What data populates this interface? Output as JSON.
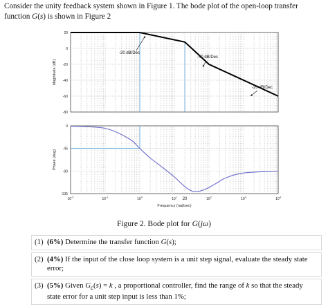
{
  "intro": {
    "line1": "Consider the unity feedback system shown in Figure 1. The bode plot of the open-loop transfer",
    "line2": "function G(s) is shown in Figure 2"
  },
  "caption": "Figure 2. Bode plot for G(jω)",
  "questions": [
    {
      "num": "(1)",
      "pct": "(6%)",
      "text": " Determine the transfer function G(s);"
    },
    {
      "num": "(2)",
      "pct": "(4%)",
      "text": " If the input of the close loop system is a unit step signal, evaluate the steady state error;"
    },
    {
      "num": "(3)",
      "pct": "(5%)",
      "text": " Given Gc(s) = k , a proportional controller, find the range of k so that the steady state error for a unit step input is less than 1%;"
    }
  ],
  "chart_data": [
    {
      "type": "line",
      "ylabel": "Magnitude (dB)",
      "x_scale": "log",
      "xlim": [
        0.01,
        10000
      ],
      "ylim": [
        -80,
        20
      ],
      "yticks": [
        "20",
        "0",
        "-20",
        "-40",
        "-60",
        "-80"
      ],
      "grid": true,
      "series": [
        {
          "x": [
            0.01,
            1,
            20,
            100,
            10000
          ],
          "y": [
            20,
            20,
            8,
            -20,
            -60
          ]
        }
      ],
      "annotations": [
        "-20 dB/Dec",
        "-40 dB/Dec",
        "-20 dB/Dec"
      ],
      "color": "#000000"
    },
    {
      "type": "line",
      "ylabel": "Phase (deg)",
      "xlabel": "Frequency (rad/sec)",
      "x_scale": "log",
      "xlim": [
        0.01,
        10000
      ],
      "ylim": [
        -135,
        0
      ],
      "yticks": [
        "0",
        "-45",
        "-90",
        "-135"
      ],
      "xticks": [
        "10-2",
        "10-1",
        "100",
        "101",
        "20",
        "102",
        "103",
        "104"
      ],
      "xtick_marks": {
        "exp": [
          "-2",
          "-1",
          "0",
          "1",
          "2",
          "3",
          "4"
        ],
        "extra": "20"
      },
      "grid": true,
      "series": [
        {
          "x": [
            0.01,
            0.1,
            0.5,
            1,
            2,
            5,
            10,
            20,
            30,
            45,
            80,
            150,
            300,
            1000,
            10000
          ],
          "y": [
            -0.5,
            -5,
            -26,
            -45,
            -64,
            -85,
            -102,
            -121,
            -129,
            -131,
            -126,
            -116,
            -104,
            -94,
            -90
          ]
        }
      ],
      "color": "#6a6acc"
    }
  ],
  "reference_lines": {
    "phase": -45,
    "freqs": [
      1,
      20
    ],
    "color": "#5aa0d6"
  }
}
